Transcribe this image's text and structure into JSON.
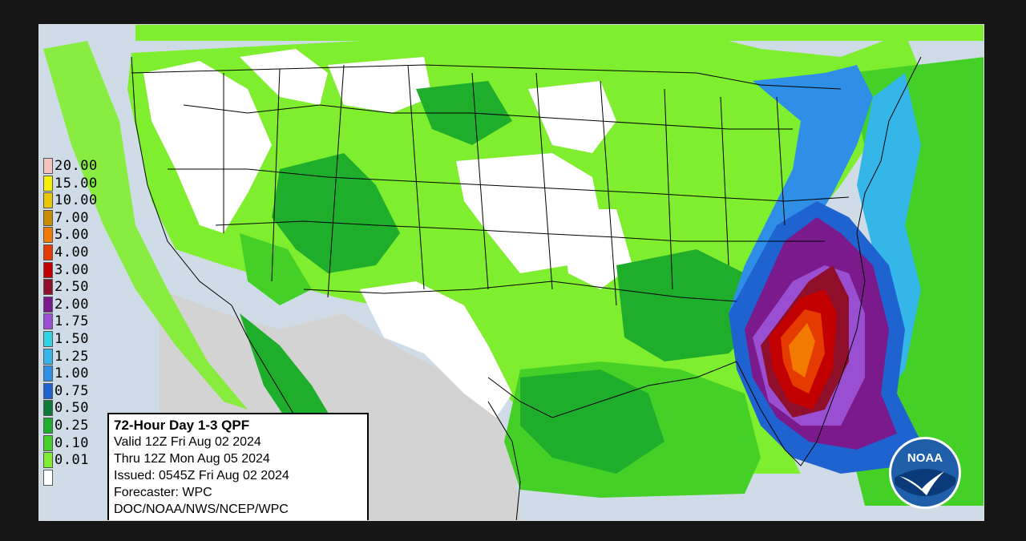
{
  "map": {
    "title": "72-Hour Day 1-3 QPF",
    "info_lines": [
      "Valid 12Z Fri Aug 02 2024",
      "Thru 12Z Mon Aug 05 2024",
      "Issued: 0545Z Fri Aug 02 2024",
      "Forecaster: WPC",
      "DOC/NOAA/NWS/NCEP/WPC"
    ],
    "logo_text": "NOAA",
    "legend": [
      {
        "label": "20.00",
        "color": "#f6c2c0"
      },
      {
        "label": "15.00",
        "color": "#f5f000"
      },
      {
        "label": "10.00",
        "color": "#e7c700"
      },
      {
        "label": "7.00",
        "color": "#c98b00"
      },
      {
        "label": "5.00",
        "color": "#f27a00"
      },
      {
        "label": "4.00",
        "color": "#e53b00"
      },
      {
        "label": "3.00",
        "color": "#c20000"
      },
      {
        "label": "2.50",
        "color": "#8f0f2b"
      },
      {
        "label": "2.00",
        "color": "#7a1a8c"
      },
      {
        "label": "1.75",
        "color": "#9a4fd2"
      },
      {
        "label": "1.50",
        "color": "#2fd3e5"
      },
      {
        "label": "1.25",
        "color": "#35b6e8"
      },
      {
        "label": "1.00",
        "color": "#2f8ee6"
      },
      {
        "label": "0.75",
        "color": "#1e63d0"
      },
      {
        "label": "0.50",
        "color": "#0e7a3a"
      },
      {
        "label": "0.25",
        "color": "#1fae2b"
      },
      {
        "label": "0.10",
        "color": "#44d026"
      },
      {
        "label": "0.01",
        "color": "#7fee2e"
      },
      {
        "label": "",
        "color": "#ffffff"
      }
    ],
    "colors": {
      "water": "#cfdce8",
      "land_outside": "#d3d3d3",
      "no_rain": "#ffffff",
      "border": "#000000"
    }
  }
}
